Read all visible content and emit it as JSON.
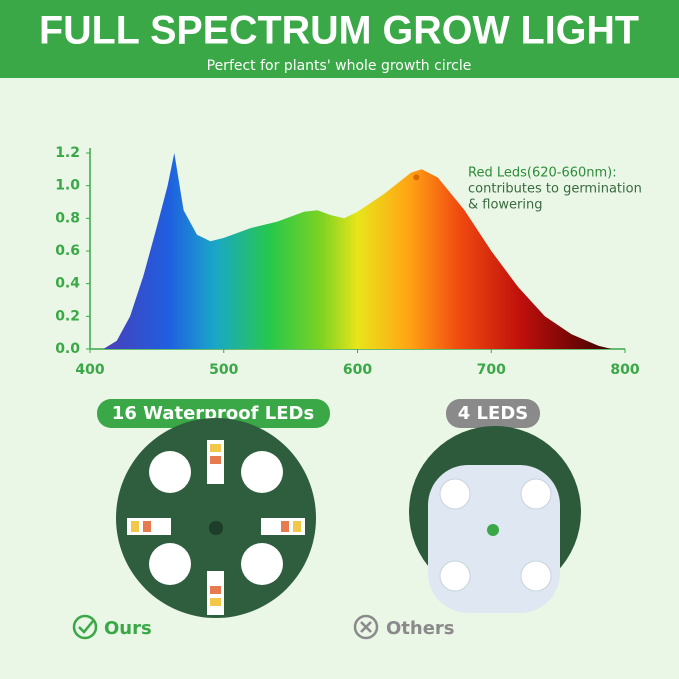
{
  "header": {
    "title": "FULL SPECTRUM GROW LIGHT",
    "subtitle": "Perfect for plants' whole growth circle"
  },
  "chart_data": {
    "type": "area",
    "x": [
      410,
      420,
      430,
      440,
      450,
      458,
      463,
      470,
      480,
      490,
      500,
      520,
      540,
      560,
      570,
      580,
      590,
      600,
      620,
      640,
      648,
      660,
      680,
      700,
      720,
      740,
      760,
      780,
      790
    ],
    "values": [
      0,
      0.05,
      0.2,
      0.45,
      0.75,
      1.0,
      1.2,
      0.85,
      0.7,
      0.66,
      0.68,
      0.74,
      0.78,
      0.84,
      0.85,
      0.82,
      0.8,
      0.84,
      0.95,
      1.08,
      1.1,
      1.05,
      0.85,
      0.6,
      0.38,
      0.2,
      0.09,
      0.02,
      0
    ],
    "xlim": [
      400,
      800
    ],
    "ylim": [
      0,
      1.2
    ],
    "xticks": [
      400,
      500,
      600,
      700,
      800
    ],
    "yticks": [
      {
        "value": 0,
        "label": "0.0"
      },
      0.2,
      0.4,
      0.6,
      0.8,
      {
        "value": 1,
        "label": "1.0"
      },
      1.2
    ],
    "annotation": {
      "x": 644,
      "y": 1.1,
      "lines": [
        "Red Leds(620-660nm):",
        "contributes to germination",
        "& flowering"
      ]
    }
  },
  "comparison": {
    "ours": {
      "badge": "16 Waterproof LEDs",
      "label": "Ours"
    },
    "others": {
      "badge": "4 LEDS",
      "label": "Others"
    }
  }
}
